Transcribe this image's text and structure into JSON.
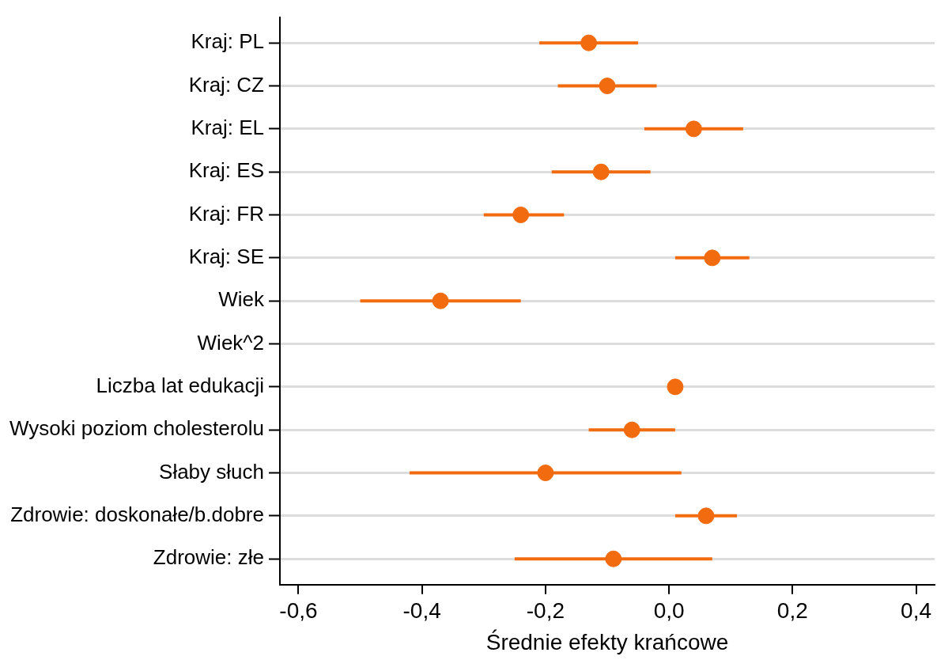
{
  "chart_data": {
    "type": "scatter",
    "orientation": "horizontal",
    "xlabel": "Średnie efekty krańcowe",
    "categories": [
      "Kraj: PL",
      "Kraj: CZ",
      "Kraj: EL",
      "Kraj: ES",
      "Kraj: FR",
      "Kraj: SE",
      "Wiek",
      "Wiek^2",
      "Liczba lat edukacji",
      "Wysoki poziom cholesterolu",
      "Słaby słuch",
      "Zdrowie: doskonałe/b.dobre",
      "Zdrowie: złe"
    ],
    "series": [
      {
        "color": "#f26b0f",
        "values": [
          -0.13,
          -0.1,
          0.04,
          -0.11,
          -0.24,
          0.07,
          -0.37,
          null,
          0.01,
          -0.06,
          -0.2,
          0.06,
          -0.09
        ],
        "errors": [
          [
            -0.21,
            -0.05
          ],
          [
            -0.18,
            -0.02
          ],
          [
            -0.04,
            0.12
          ],
          [
            -0.19,
            -0.03
          ],
          [
            -0.3,
            -0.17
          ],
          [
            0.01,
            0.13
          ],
          [
            -0.5,
            -0.24
          ],
          null,
          null,
          [
            -0.13,
            0.01
          ],
          [
            -0.42,
            0.02
          ],
          [
            0.01,
            0.11
          ],
          [
            -0.25,
            0.07
          ]
        ]
      }
    ],
    "xlim": [
      -0.63,
      0.43
    ],
    "xticks": [
      {
        "value": -0.6,
        "label": "-0,6"
      },
      {
        "value": -0.4,
        "label": "-0,4"
      },
      {
        "value": -0.2,
        "label": "-0,2"
      },
      {
        "value": 0,
        "label": "0,0"
      },
      {
        "value": 0.2,
        "label": "0,2"
      },
      {
        "value": 0.4,
        "label": "0,4"
      }
    ],
    "grid": "y",
    "marker": "circle",
    "legend": false
  }
}
